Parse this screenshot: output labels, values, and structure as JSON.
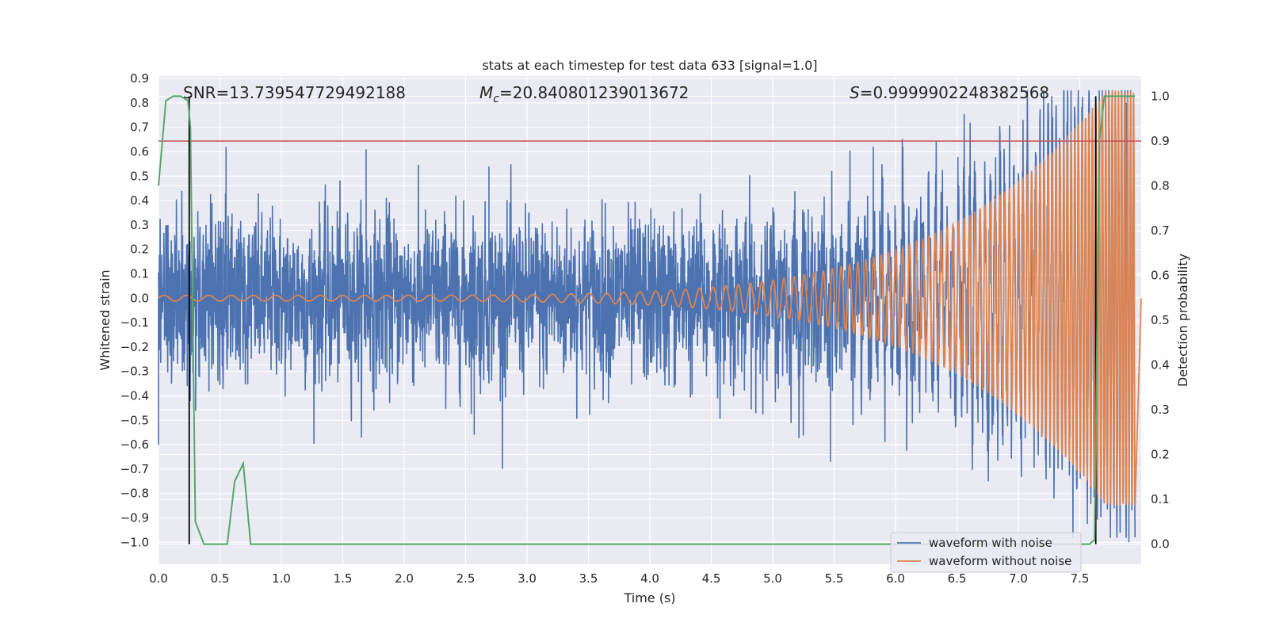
{
  "chart_data": {
    "type": "line",
    "title": "stats at each timestep for test data 633 [signal=1.0]",
    "xlabel": "Time (s)",
    "ylabel": "Whitened strain",
    "y2label": "Detection probability",
    "xlim": [
      0.0,
      8.0
    ],
    "ylim": [
      -1.09,
      0.91
    ],
    "y2lim": [
      -0.045,
      1.045
    ],
    "xticks": [
      "0.0",
      "0.5",
      "1.0",
      "1.5",
      "2.0",
      "2.5",
      "3.0",
      "3.5",
      "4.0",
      "4.5",
      "5.0",
      "5.5",
      "6.0",
      "6.5",
      "7.0",
      "7.5"
    ],
    "xtick_values": [
      0.0,
      0.5,
      1.0,
      1.5,
      2.0,
      2.5,
      3.0,
      3.5,
      4.0,
      4.5,
      5.0,
      5.5,
      6.0,
      6.5,
      7.0,
      7.5
    ],
    "yticks": [
      "0.9",
      "0.8",
      "0.7",
      "0.6",
      "0.5",
      "0.4",
      "0.3",
      "0.2",
      "0.1",
      "0.0",
      "−0.1",
      "−0.2",
      "−0.3",
      "−0.4",
      "−0.5",
      "−0.6",
      "−0.7",
      "−0.8",
      "−0.9",
      "−1.0"
    ],
    "ytick_values": [
      0.9,
      0.8,
      0.7,
      0.6,
      0.5,
      0.4,
      0.3,
      0.2,
      0.1,
      0.0,
      -0.1,
      -0.2,
      -0.3,
      -0.4,
      -0.5,
      -0.6,
      -0.7,
      -0.8,
      -0.9,
      -1.0
    ],
    "y2ticks": [
      "1.0",
      "0.9",
      "0.8",
      "0.7",
      "0.6",
      "0.5",
      "0.4",
      "0.3",
      "0.2",
      "0.1",
      "0.0"
    ],
    "y2tick_values": [
      1.0,
      0.9,
      0.8,
      0.7,
      0.6,
      0.5,
      0.4,
      0.3,
      0.2,
      0.1,
      0.0
    ],
    "annotations": {
      "snr": "SNR=13.739547729492188",
      "mc_symbol": "M",
      "mc_sub": "c",
      "mc_value": "=20.840801239013672",
      "s_symbol": "S",
      "s_value": "=0.9999902248382568"
    },
    "threshold_y2": 0.9,
    "vlines_x": [
      0.25,
      7.63
    ],
    "series": [
      {
        "name": "waveform with noise",
        "color": "#4c72b0",
        "axis": "left",
        "noise_sigma": 0.17,
        "envelope_peak_t": 7.95,
        "spikes": [
          [
            0.0,
            -0.6
          ],
          [
            0.55,
            0.62
          ],
          [
            1.69,
            0.61
          ],
          [
            5.47,
            -0.67
          ],
          [
            7.9,
            -1.0
          ],
          [
            7.88,
            0.8
          ],
          [
            7.94,
            0.8
          ],
          [
            2.57,
            -0.56
          ],
          [
            2.69,
            0.54
          ],
          [
            3.35,
            -0.05
          ]
        ]
      },
      {
        "name": "waveform without noise",
        "color": "#dd8452",
        "axis": "left",
        "amplitude_start": 0.012,
        "amplitude_end": 0.85,
        "freq_start_hz": 5.5,
        "freq_end_hz": 42,
        "t_start": 0.0,
        "t_end": 7.95
      },
      {
        "name": "detection probability",
        "color": "#55a868",
        "axis": "right",
        "x": [
          0.0,
          0.06,
          0.12,
          0.18,
          0.24,
          0.26,
          0.3,
          0.37,
          0.5,
          0.56,
          0.62,
          0.69,
          0.75,
          0.8,
          1.0,
          2.0,
          3.0,
          4.0,
          5.0,
          6.0,
          7.0,
          7.5,
          7.58,
          7.62,
          7.66,
          7.7,
          7.75,
          7.85,
          7.95
        ],
        "y": [
          0.8,
          0.99,
          1.0,
          1.0,
          0.99,
          0.93,
          0.05,
          0.0,
          0.0,
          0.0,
          0.14,
          0.18,
          0.0,
          0.0,
          0.0,
          0.0,
          0.0,
          0.0,
          0.0,
          0.0,
          0.0,
          0.0,
          0.0,
          0.01,
          0.9,
          1.0,
          1.0,
          1.0,
          1.0
        ]
      }
    ],
    "threshold_color": "#c44e52",
    "legend": {
      "placement": "lower-right",
      "entries": [
        "waveform with noise",
        "waveform without noise"
      ]
    }
  }
}
